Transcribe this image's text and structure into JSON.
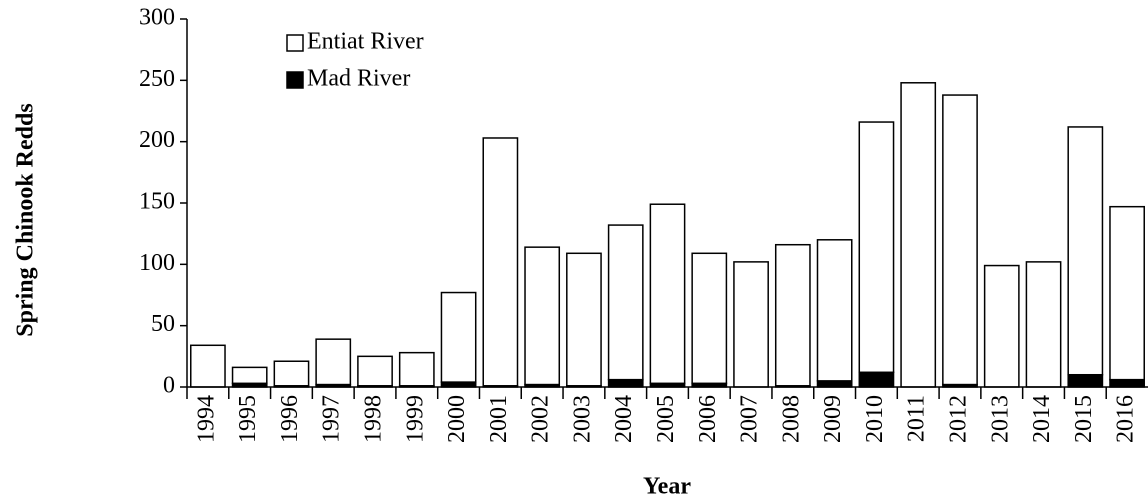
{
  "chart_data": {
    "type": "stacked_bar",
    "x_label": "Year",
    "y_label": "Spring Chinook Redds",
    "categories": [
      "1994",
      "1995",
      "1996",
      "1997",
      "1998",
      "1999",
      "2000",
      "2001",
      "2002",
      "2003",
      "2004",
      "2005",
      "2006",
      "2007",
      "2008",
      "2009",
      "2010",
      "2011",
      "2012",
      "2013",
      "2014",
      "2015",
      "2016"
    ],
    "series": [
      {
        "name": "Entiat River",
        "color": "#ffffff",
        "values": [
          34,
          13,
          20,
          37,
          24,
          27,
          73,
          202,
          112,
          108,
          126,
          146,
          106,
          102,
          115,
          115,
          204,
          248,
          236,
          99,
          102,
          202,
          141
        ]
      },
      {
        "name": "Mad River",
        "color": "#000000",
        "values": [
          0,
          3,
          1,
          2,
          1,
          1,
          4,
          1,
          2,
          1,
          6,
          3,
          3,
          0,
          1,
          5,
          12,
          0,
          2,
          0,
          0,
          10,
          6
        ]
      }
    ],
    "ylim": [
      0,
      300
    ],
    "yticks": [
      0,
      50,
      100,
      150,
      200,
      250,
      300
    ],
    "legend": "top-left"
  }
}
